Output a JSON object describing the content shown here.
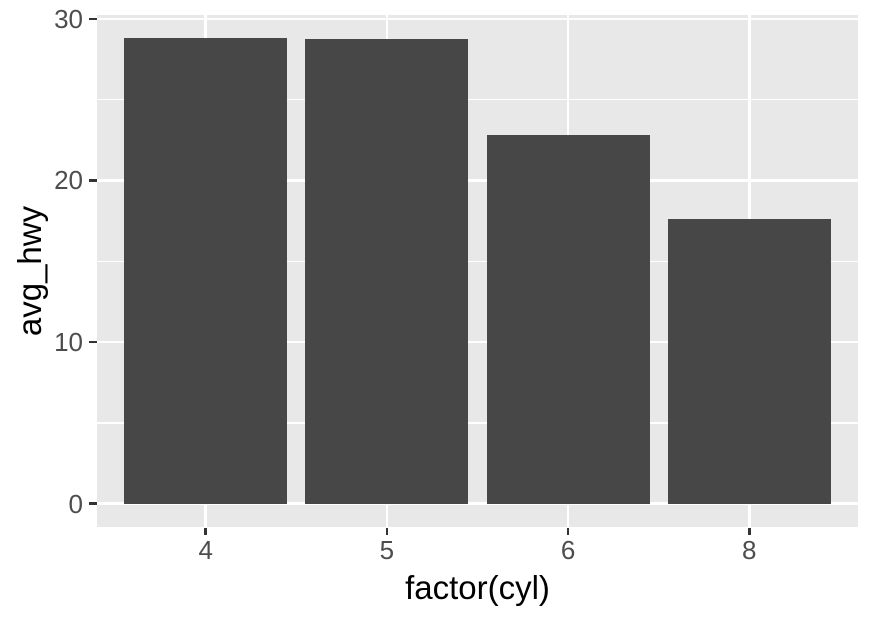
{
  "chart_data": {
    "type": "bar",
    "title": "",
    "categories": [
      "4",
      "5",
      "6",
      "8"
    ],
    "values": [
      28.8,
      28.75,
      22.82,
      17.63
    ],
    "xlabel": "factor(cyl)",
    "ylabel": "avg_hwy",
    "y_ticks": [
      0,
      10,
      20,
      30
    ],
    "y_minor_ticks": [
      5,
      15,
      25
    ],
    "ylim": [
      0,
      30
    ],
    "grid": true,
    "legend_position": "none",
    "colors": {
      "bar_fill": "#474747",
      "panel_bg": "#E8E8E8",
      "grid": "#FFFFFF",
      "tick_mark": "#333333",
      "axis_text": "#4D4D4D",
      "axis_title": "#000000",
      "figure_bg": "#FFFFFF"
    }
  }
}
